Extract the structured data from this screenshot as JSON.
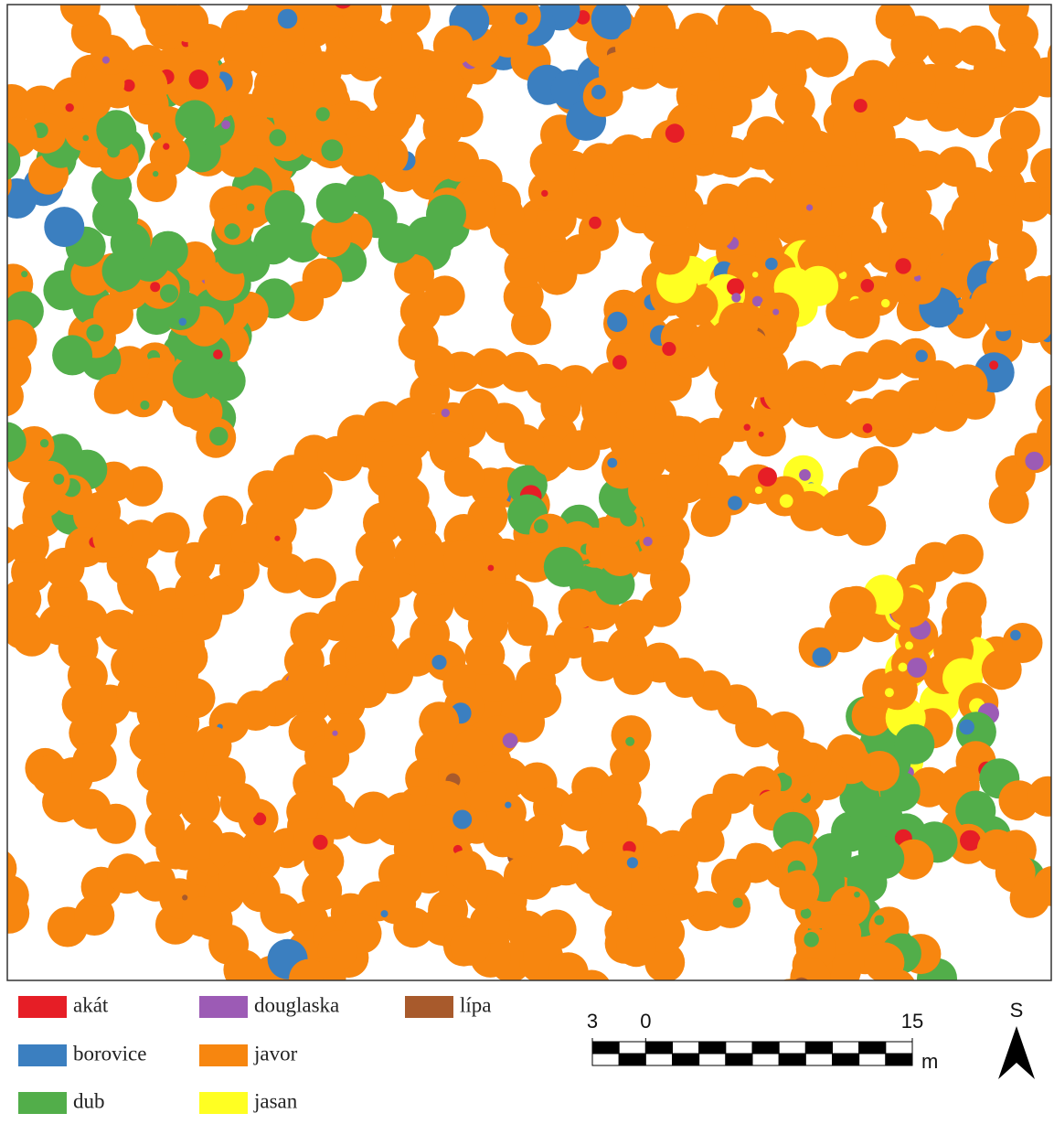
{
  "legend": {
    "items": [
      {
        "label": "akát",
        "color": "#e61e26"
      },
      {
        "label": "borovice",
        "color": "#3b7fc0"
      },
      {
        "label": "dub",
        "color": "#52ae4a"
      },
      {
        "label": "douglaska",
        "color": "#9c5bb5"
      },
      {
        "label": "javor",
        "color": "#f7860f"
      },
      {
        "label": "jasan",
        "color": "#ffff22"
      },
      {
        "label": "lípa",
        "color": "#a85a2c"
      }
    ]
  },
  "scale_bar": {
    "ticks": [
      {
        "value": -3,
        "label": "3"
      },
      0,
      15
    ],
    "unit": "m"
  },
  "north_arrow": {
    "label": "S"
  }
}
